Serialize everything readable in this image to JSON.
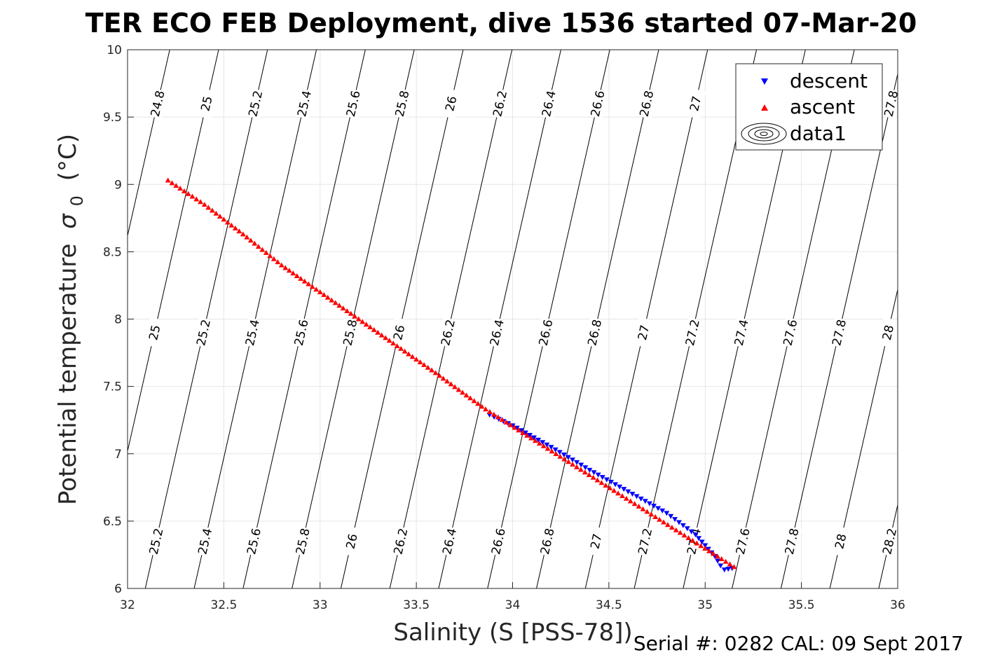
{
  "chart_data": {
    "type": "scatter",
    "title": "TER ECO FEB Deployment, dive 1536 started 07-Mar-20",
    "xlabel": "Salinity (S [PSS-78])",
    "ylabel": "Potential temperature",
    "ylabel_sigma": "σ",
    "ylabel_sub": "0",
    "ylabel_unit": "(°C)",
    "xlim": [
      32,
      36
    ],
    "ylim": [
      6,
      10
    ],
    "xticks": [
      "32",
      "32.5",
      "33",
      "33.5",
      "34",
      "34.5",
      "35",
      "35.5",
      "36"
    ],
    "yticks": [
      "6",
      "6.5",
      "7",
      "7.5",
      "8",
      "8.5",
      "9",
      "9.5",
      "10"
    ],
    "grid": true,
    "legend_position": "top-right",
    "legend": [
      {
        "label": "descent",
        "marker": "triangle-down",
        "color": "#0000ff"
      },
      {
        "label": "ascent",
        "marker": "triangle-up",
        "color": "#ff0000"
      },
      {
        "label": "data1",
        "marker": "contour",
        "color": "#000000"
      }
    ],
    "series": [
      {
        "name": "descent",
        "color": "#0000ff",
        "marker": "triangle-down",
        "points": [
          [
            33.88,
            7.29
          ],
          [
            34.0,
            7.21
          ],
          [
            34.2,
            7.05
          ],
          [
            34.4,
            6.88
          ],
          [
            34.6,
            6.72
          ],
          [
            34.8,
            6.56
          ],
          [
            34.95,
            6.4
          ],
          [
            35.05,
            6.24
          ],
          [
            35.08,
            6.17
          ],
          [
            35.1,
            6.14
          ],
          [
            35.14,
            6.15
          ]
        ]
      },
      {
        "name": "ascent",
        "color": "#ff0000",
        "marker": "triangle-up",
        "points": [
          [
            32.21,
            9.03
          ],
          [
            32.4,
            8.85
          ],
          [
            32.6,
            8.63
          ],
          [
            32.8,
            8.4
          ],
          [
            33.0,
            8.2
          ],
          [
            33.2,
            8.0
          ],
          [
            33.4,
            7.8
          ],
          [
            33.6,
            7.6
          ],
          [
            33.86,
            7.33
          ],
          [
            35.15,
            6.16
          ]
        ]
      }
    ],
    "isopycnals": [
      {
        "value": 24.8,
        "label": "24.8"
      },
      {
        "value": 25.0,
        "label": "25"
      },
      {
        "value": 25.2,
        "label": "25.2"
      },
      {
        "value": 25.4,
        "label": "25.4"
      },
      {
        "value": 25.6,
        "label": "25.6"
      },
      {
        "value": 25.8,
        "label": "25.8"
      },
      {
        "value": 26.0,
        "label": "26"
      },
      {
        "value": 26.2,
        "label": "26.2"
      },
      {
        "value": 26.4,
        "label": "26.4"
      },
      {
        "value": 26.6,
        "label": "26.6"
      },
      {
        "value": 26.8,
        "label": "26.8"
      },
      {
        "value": 27.0,
        "label": "27"
      },
      {
        "value": 27.2,
        "label": "27.2"
      },
      {
        "value": 27.4,
        "label": "27.4"
      },
      {
        "value": 27.6,
        "label": "27.6"
      },
      {
        "value": 27.8,
        "label": "27.8"
      },
      {
        "value": 28.0,
        "label": "28"
      },
      {
        "value": 28.2,
        "label": "28.2"
      }
    ],
    "contour_label_rows": [
      9.6,
      7.9,
      6.35
    ]
  },
  "footer": {
    "text": "Serial #: 0282  CAL: 09 Sept 2017"
  }
}
